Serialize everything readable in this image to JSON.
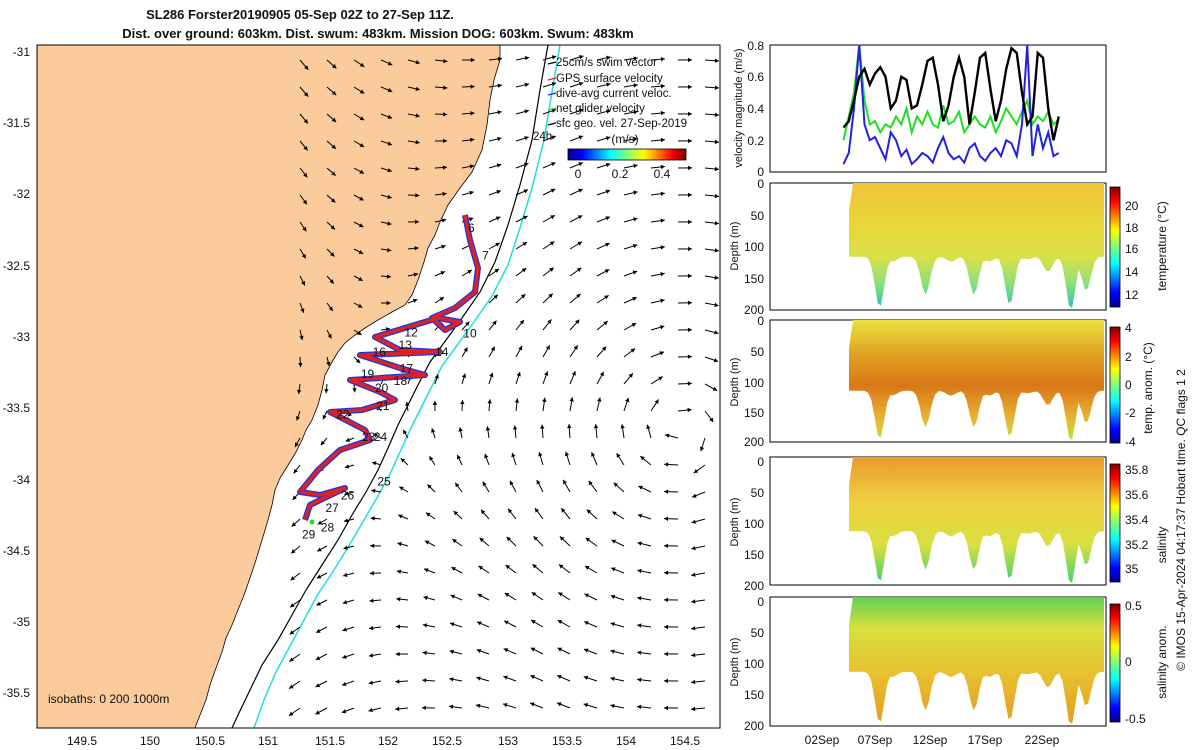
{
  "chart_data": [
    {
      "type": "map",
      "title_line1": "SL286 Forster20190905 05-Sep 02Z to 27-Sep 11Z.",
      "title_line2": "Dist. over ground: 603km. Dist. swum: 483km. Mission DOG: 603km. Swum: 483km",
      "x_ticks": [
        "149.5",
        "150",
        "150.5",
        "151",
        "151.5",
        "152",
        "152.5",
        "153",
        "153.5",
        "154",
        "154.5"
      ],
      "y_ticks": [
        "-31",
        "-31.5",
        "-32",
        "-32.5",
        "-33",
        "-33.5",
        "-34",
        "-34.5",
        "-35",
        "-35.5"
      ],
      "xlim": [
        149.0,
        154.8
      ],
      "ylim": [
        -35.8,
        -30.9
      ],
      "legend": [
        "25cm/s swim vector",
        "GPS surface velocity",
        "dive-avg current veloc.",
        "net glider velocity",
        "sfc geo. vel. 27-Sep-2019"
      ],
      "colorbar_label": "(m/s)",
      "colorbar_ticks": [
        "0",
        "0.2",
        "0.4"
      ],
      "isobath_note": "isobaths: 0   200   1000m",
      "marker_24h": "24h",
      "day_labels": [
        {
          "t": "6",
          "lon": 152.66,
          "lat": -32.24
        },
        {
          "t": "7",
          "lon": 152.78,
          "lat": -32.44
        },
        {
          "t": "10",
          "lon": 152.62,
          "lat": -33.0
        },
        {
          "t": "12",
          "lon": 152.12,
          "lat": -32.99
        },
        {
          "t": "13",
          "lon": 152.07,
          "lat": -33.08
        },
        {
          "t": "14",
          "lon": 152.38,
          "lat": -33.13
        },
        {
          "t": "16",
          "lon": 151.85,
          "lat": -33.13
        },
        {
          "t": "17",
          "lon": 152.08,
          "lat": -33.25
        },
        {
          "t": "18",
          "lon": 152.03,
          "lat": -33.34
        },
        {
          "t": "19",
          "lon": 151.75,
          "lat": -33.29
        },
        {
          "t": "20",
          "lon": 151.87,
          "lat": -33.39
        },
        {
          "t": "21",
          "lon": 151.88,
          "lat": -33.52
        },
        {
          "t": "22",
          "lon": 151.54,
          "lat": -33.58
        },
        {
          "t": "23",
          "lon": 151.76,
          "lat": -33.74
        },
        {
          "t": "24",
          "lon": 151.86,
          "lat": -33.74
        },
        {
          "t": "25",
          "lon": 151.89,
          "lat": -34.06
        },
        {
          "t": "26",
          "lon": 151.58,
          "lat": -34.16
        },
        {
          "t": "27",
          "lon": 151.45,
          "lat": -34.25
        },
        {
          "t": "28",
          "lon": 151.41,
          "lat": -34.39
        },
        {
          "t": "29",
          "lon": 151.25,
          "lat": -34.44
        }
      ]
    },
    {
      "type": "line",
      "ylabel": "velocity magnitude (m/s)",
      "y_ticks": [
        "0",
        "0.2",
        "0.4",
        "0.6",
        "0.8"
      ],
      "ylim": [
        0,
        0.8
      ],
      "xlim": [
        0,
        32
      ],
      "series": [
        {
          "name": "net glider velocity",
          "color": "#000000",
          "x": [
            7,
            7.5,
            8,
            8.5,
            9,
            9.5,
            10,
            10.5,
            11,
            11.5,
            12,
            12.5,
            13,
            13.5,
            14,
            14.5,
            15,
            15.5,
            16,
            16.5,
            17,
            17.5,
            18,
            18.5,
            19,
            19.5,
            20,
            20.5,
            21,
            21.5,
            22,
            22.5,
            23,
            23.5,
            24,
            24.5,
            25,
            25.5,
            26,
            26.5,
            27,
            27.5
          ],
          "values": [
            0.28,
            0.32,
            0.45,
            0.6,
            0.65,
            0.55,
            0.62,
            0.66,
            0.6,
            0.4,
            0.45,
            0.6,
            0.58,
            0.4,
            0.42,
            0.55,
            0.7,
            0.72,
            0.55,
            0.32,
            0.42,
            0.6,
            0.72,
            0.6,
            0.3,
            0.5,
            0.72,
            0.75,
            0.52,
            0.32,
            0.45,
            0.65,
            0.78,
            0.75,
            0.5,
            0.3,
            0.35,
            0.75,
            0.72,
            0.4,
            0.2,
            0.35
          ]
        },
        {
          "name": "dive-avg current veloc.",
          "color": "#2222dd",
          "x": [
            7,
            7.5,
            8,
            8.5,
            9,
            9.5,
            10,
            10.5,
            11,
            11.5,
            12,
            12.5,
            13,
            13.5,
            14,
            14.5,
            15,
            15.5,
            16,
            16.5,
            17,
            17.5,
            18,
            18.5,
            19,
            19.5,
            20,
            20.5,
            21,
            21.5,
            22,
            22.5,
            23,
            23.5,
            24,
            24.5,
            25,
            25.5,
            26,
            26.5,
            27,
            27.5
          ],
          "values": [
            0.05,
            0.12,
            0.4,
            0.8,
            0.3,
            0.2,
            0.22,
            0.15,
            0.08,
            0.25,
            0.2,
            0.1,
            0.14,
            0.05,
            0.08,
            0.12,
            0.1,
            0.06,
            0.15,
            0.22,
            0.12,
            0.08,
            0.1,
            0.06,
            0.15,
            0.18,
            0.1,
            0.07,
            0.12,
            0.15,
            0.1,
            0.2,
            0.18,
            0.1,
            0.3,
            0.8,
            0.1,
            0.3,
            0.15,
            0.25,
            0.1,
            0.12
          ]
        },
        {
          "name": "GPS surface velocity",
          "color": "#22dd22",
          "x": [
            7,
            7.5,
            8,
            8.5,
            9,
            9.5,
            10,
            10.5,
            11,
            11.5,
            12,
            12.5,
            13,
            13.5,
            14,
            14.5,
            15,
            15.5,
            16,
            16.5,
            17,
            17.5,
            18,
            18.5,
            19,
            19.5,
            20,
            20.5,
            21,
            21.5,
            22,
            22.5,
            23,
            23.5,
            24,
            24.5,
            25,
            25.5,
            26,
            26.5,
            27,
            27.5
          ],
          "values": [
            0.2,
            0.35,
            0.5,
            0.8,
            0.45,
            0.3,
            0.32,
            0.25,
            0.3,
            0.28,
            0.35,
            0.3,
            0.4,
            0.25,
            0.35,
            0.3,
            0.38,
            0.3,
            0.28,
            0.42,
            0.3,
            0.32,
            0.38,
            0.25,
            0.3,
            0.35,
            0.3,
            0.28,
            0.35,
            0.25,
            0.32,
            0.4,
            0.35,
            0.3,
            0.38,
            0.45,
            0.3,
            0.35,
            0.32,
            0.38,
            0.3,
            0.33
          ]
        }
      ]
    },
    {
      "type": "heatmap",
      "ylabel": "Depth (m)",
      "cbar_label": "temperature (°C)",
      "y_ticks": [
        "0",
        "50",
        "100",
        "150",
        "200"
      ],
      "cbar_ticks": [
        "12",
        "14",
        "16",
        "18",
        "20"
      ],
      "cbar_range": [
        11,
        22
      ]
    },
    {
      "type": "heatmap",
      "ylabel": "Depth (m)",
      "cbar_label": "temp. anom. (°C)",
      "y_ticks": [
        "0",
        "50",
        "100",
        "150",
        "200"
      ],
      "cbar_ticks": [
        "-4",
        "-2",
        "0",
        "2",
        "4"
      ],
      "cbar_range": [
        -4,
        4
      ]
    },
    {
      "type": "heatmap",
      "ylabel": "Depth (m)",
      "cbar_label": "salinity",
      "y_ticks": [
        "0",
        "50",
        "100",
        "150",
        "200"
      ],
      "cbar_ticks": [
        "35",
        "35.2",
        "35.4",
        "35.6",
        "35.8"
      ],
      "cbar_range": [
        34.9,
        35.8
      ]
    },
    {
      "type": "heatmap",
      "ylabel": "Depth (m)",
      "cbar_label": "salinity anom.",
      "y_ticks": [
        "0",
        "50",
        "100",
        "150",
        "200"
      ],
      "cbar_ticks": [
        "-0.5",
        "0",
        "0.5"
      ],
      "cbar_range": [
        -0.5,
        0.5
      ],
      "x_ticks": [
        "02Sep",
        "07Sep",
        "12Sep",
        "17Sep",
        "22Sep"
      ]
    }
  ],
  "side_text": "© IMOS 15-Apr-2024 04:17:37 Hobart time. QC flags 1  2"
}
